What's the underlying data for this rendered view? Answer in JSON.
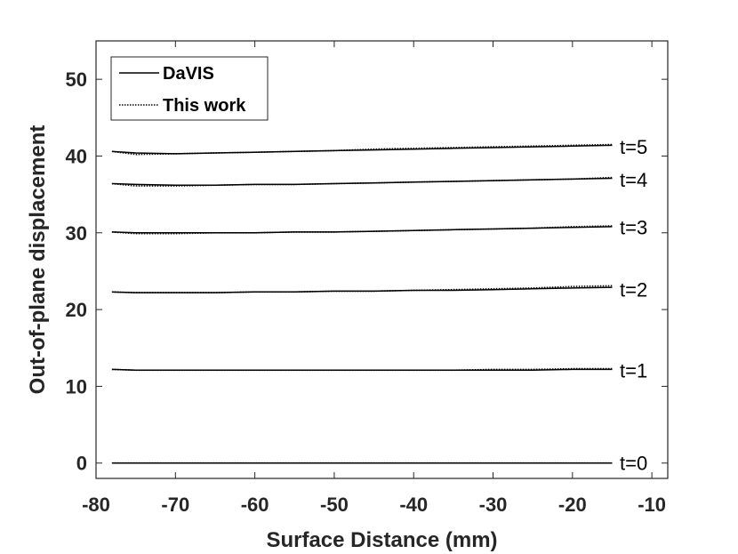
{
  "chart_data": {
    "type": "line",
    "title": "",
    "xlabel": "Surface Distance (mm)",
    "ylabel": "Out-of-plane displacement",
    "xlim": [
      -80,
      -8
    ],
    "ylim": [
      -2,
      55
    ],
    "xticks": [
      -80,
      -70,
      -60,
      -50,
      -40,
      -30,
      -20,
      -10
    ],
    "xtick_labels": [
      "-80",
      "-70",
      "-60",
      "-50",
      "-40",
      "-30",
      "-20",
      "-10"
    ],
    "yticks": [
      0,
      10,
      20,
      30,
      40,
      50
    ],
    "ytick_labels": [
      "0",
      "10",
      "20",
      "30",
      "40",
      "50"
    ],
    "grid": false,
    "legend_position": "top-left",
    "legend": [
      {
        "label": "DaVIS",
        "style": "solid"
      },
      {
        "label": "This work",
        "style": "dotted"
      }
    ],
    "x": [
      -78,
      -75,
      -70,
      -65,
      -60,
      -55,
      -50,
      -45,
      -40,
      -35,
      -30,
      -25,
      -20,
      -15
    ],
    "series": [
      {
        "name": "DaVIS",
        "group": "t=0",
        "values": [
          0,
          0,
          0,
          0,
          0,
          0,
          0,
          0,
          0,
          0,
          0,
          0,
          0,
          0
        ]
      },
      {
        "name": "This work",
        "group": "t=0",
        "values": [
          0,
          0,
          0,
          0,
          0,
          0,
          0,
          0,
          0,
          0,
          0,
          0,
          0,
          0
        ]
      },
      {
        "name": "DaVIS",
        "group": "t=1",
        "values": [
          12.2,
          12.1,
          12.1,
          12.1,
          12.1,
          12.1,
          12.1,
          12.1,
          12.1,
          12.1,
          12.1,
          12.1,
          12.2,
          12.2
        ]
      },
      {
        "name": "This work",
        "group": "t=1",
        "values": [
          12.2,
          12.1,
          12.1,
          12.1,
          12.1,
          12.1,
          12.1,
          12.1,
          12.1,
          12.1,
          12.2,
          12.2,
          12.3,
          12.3
        ]
      },
      {
        "name": "DaVIS",
        "group": "t=2",
        "values": [
          22.3,
          22.2,
          22.2,
          22.2,
          22.3,
          22.3,
          22.4,
          22.4,
          22.5,
          22.5,
          22.6,
          22.7,
          22.8,
          22.9
        ]
      },
      {
        "name": "This work",
        "group": "t=2",
        "values": [
          22.3,
          22.2,
          22.2,
          22.2,
          22.3,
          22.3,
          22.4,
          22.4,
          22.5,
          22.6,
          22.7,
          22.8,
          23.0,
          23.1
        ]
      },
      {
        "name": "DaVIS",
        "group": "t=3",
        "values": [
          30.1,
          30.0,
          30.0,
          30.0,
          30.0,
          30.1,
          30.1,
          30.2,
          30.3,
          30.4,
          30.5,
          30.6,
          30.7,
          30.8
        ]
      },
      {
        "name": "This work",
        "group": "t=3",
        "values": [
          30.1,
          29.9,
          29.9,
          30.0,
          30.0,
          30.1,
          30.1,
          30.2,
          30.3,
          30.4,
          30.5,
          30.6,
          30.8,
          30.9
        ]
      },
      {
        "name": "DaVIS",
        "group": "t=4",
        "values": [
          36.4,
          36.3,
          36.2,
          36.2,
          36.3,
          36.3,
          36.4,
          36.5,
          36.6,
          36.7,
          36.8,
          36.9,
          37.0,
          37.1
        ]
      },
      {
        "name": "This work",
        "group": "t=4",
        "values": [
          36.4,
          36.1,
          36.1,
          36.2,
          36.3,
          36.3,
          36.4,
          36.5,
          36.6,
          36.7,
          36.8,
          36.9,
          37.0,
          37.2
        ]
      },
      {
        "name": "DaVIS",
        "group": "t=5",
        "values": [
          40.6,
          40.4,
          40.3,
          40.4,
          40.5,
          40.6,
          40.7,
          40.8,
          40.9,
          41.0,
          41.1,
          41.2,
          41.3,
          41.4
        ]
      },
      {
        "name": "This work",
        "group": "t=5",
        "values": [
          40.6,
          40.2,
          40.3,
          40.4,
          40.5,
          40.6,
          40.7,
          40.9,
          41.0,
          41.1,
          41.2,
          41.3,
          41.4,
          41.5
        ]
      }
    ],
    "annotations": [
      {
        "text": "t=0",
        "y": 0
      },
      {
        "text": "t=1",
        "y": 12.1
      },
      {
        "text": "t=2",
        "y": 22.6
      },
      {
        "text": "t=3",
        "y": 30.7
      },
      {
        "text": "t=4",
        "y": 36.9
      },
      {
        "text": "t=5",
        "y": 41.2
      }
    ]
  }
}
